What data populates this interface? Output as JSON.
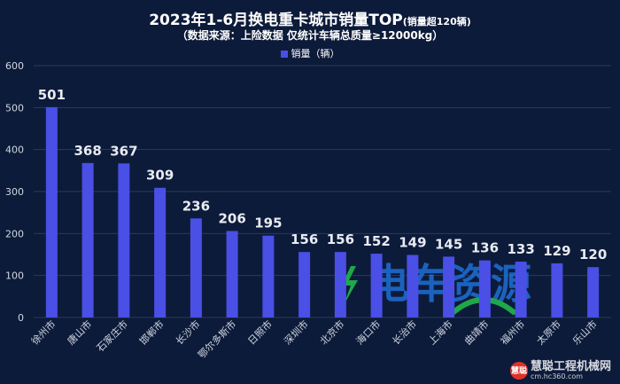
{
  "colors": {
    "background": "#0d1b3a",
    "bar": "#4a4fe6",
    "grid": "#2a3a5c",
    "axis_text": "#d0d6e2",
    "value_label": "#e8ebf2",
    "watermark_blue": "#1f6fd6",
    "watermark_green": "#1fa84a"
  },
  "chart_data": {
    "type": "bar",
    "title": "2023年1-6月换电重卡城市销量TOP",
    "title_suffix": "(销量超120辆)",
    "subtitle": "（数据来源：上险数据  仅统计车辆总质量≥12000kg）",
    "categories": [
      "徐州市",
      "唐山市",
      "石家庄市",
      "邯郸市",
      "长沙市",
      "鄂尔多斯市",
      "日照市",
      "深圳市",
      "北京市",
      "海口市",
      "长治市",
      "上海市",
      "曲靖市",
      "福州市",
      "太原市",
      "乐山市"
    ],
    "series": [
      {
        "name": "销量（辆）",
        "values": [
          501,
          368,
          367,
          309,
          236,
          206,
          195,
          156,
          156,
          152,
          149,
          145,
          136,
          133,
          129,
          120
        ]
      }
    ],
    "ylim": [
      0,
      600
    ],
    "yticks": [
      0,
      100,
      200,
      300,
      400,
      500,
      600
    ],
    "grid": true,
    "legend_position": "top-center",
    "data_labels": true,
    "xlabel": "",
    "ylabel": ""
  },
  "watermark": {
    "logo_text": "电车资源",
    "site_badge": "慧聪",
    "site_name": "慧聪工程机械网",
    "site_url": "cm.hc360.com"
  }
}
